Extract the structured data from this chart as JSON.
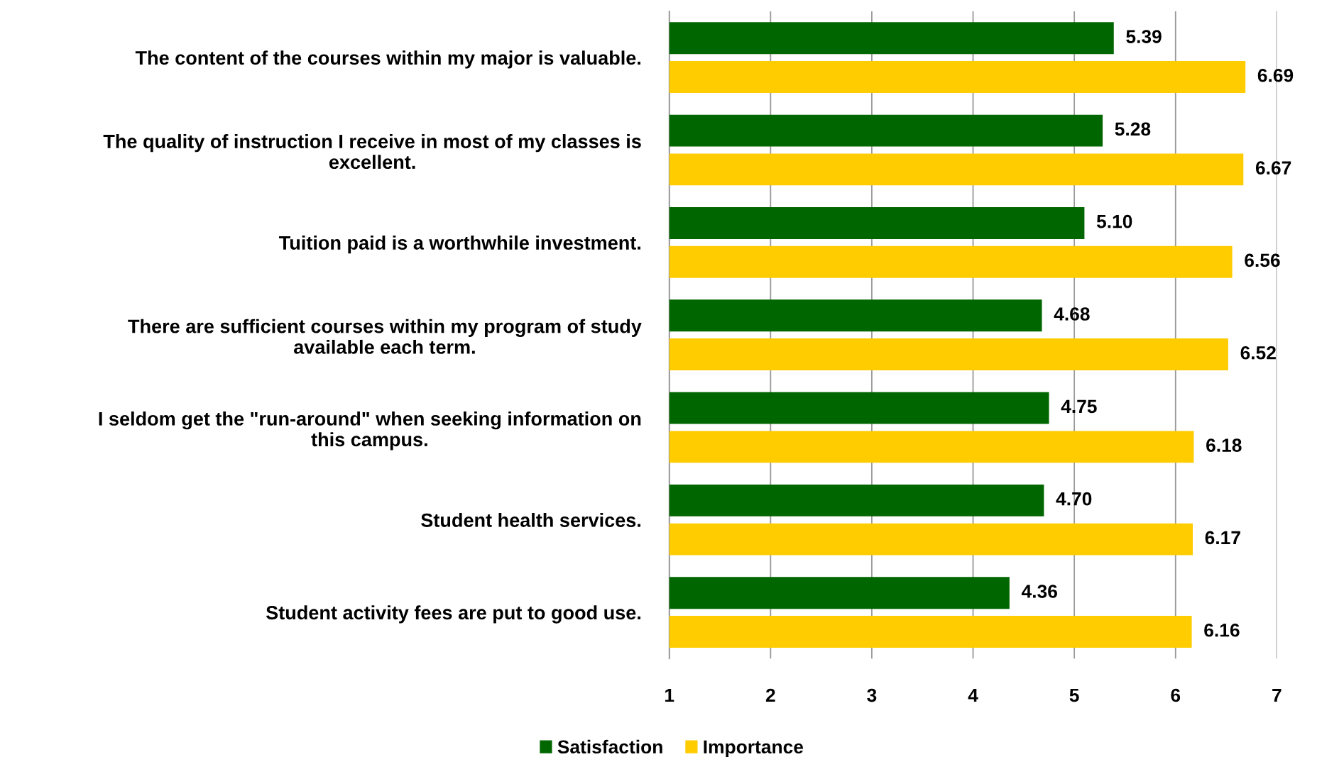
{
  "chart_data": {
    "type": "bar",
    "orientation": "horizontal",
    "categories": [
      "The content of the courses within my major is valuable.",
      "The quality of instruction I receive in most of my classes is\nexcellent.",
      "Tuition paid is a worthwhile investment.",
      "There are sufficient courses within my program of study\navailable each term.",
      "I seldom get the \"run-around\" when seeking information on\nthis campus.",
      "Student health services.",
      "Student activity fees are put to good use."
    ],
    "series": [
      {
        "name": "Satisfaction",
        "color": "#006600",
        "values": [
          5.39,
          5.28,
          5.1,
          4.68,
          4.75,
          4.7,
          4.36
        ],
        "value_labels": [
          "5.39",
          "5.28",
          "5.10",
          "4.68",
          "4.75",
          "4.70",
          "4.36"
        ]
      },
      {
        "name": "Importance",
        "color": "#ffcc00",
        "values": [
          6.69,
          6.67,
          6.56,
          6.52,
          6.18,
          6.17,
          6.16
        ],
        "value_labels": [
          "6.69",
          "6.67",
          "6.56",
          "6.52",
          "6.18",
          "6.17",
          "6.16"
        ]
      }
    ],
    "xlim": [
      1,
      7
    ],
    "xticks": [
      1,
      2,
      3,
      4,
      5,
      6,
      7
    ],
    "grid": "x",
    "legend": "bottom"
  }
}
